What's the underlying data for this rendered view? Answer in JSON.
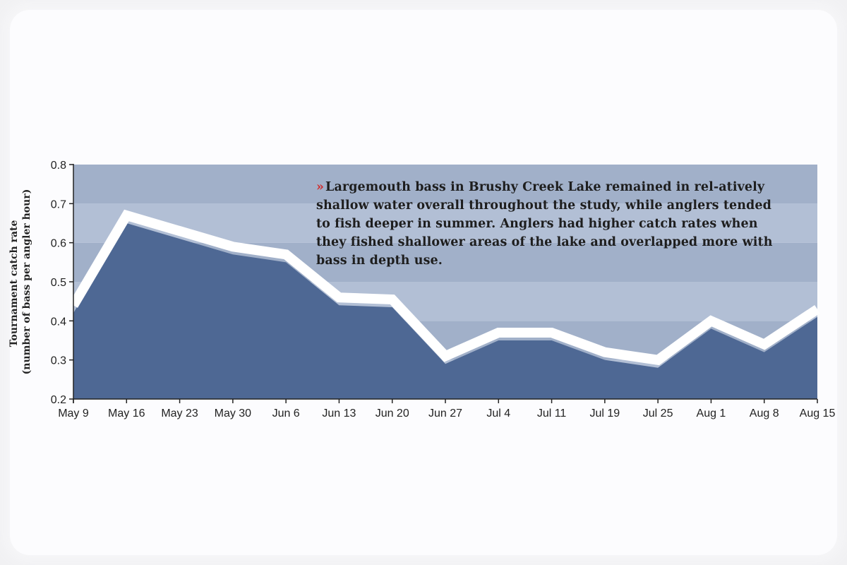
{
  "chart_data": {
    "type": "area",
    "categories": [
      "May 9",
      "May 16",
      "May 23",
      "May 30",
      "Jun 6",
      "Jun 13",
      "Jun 20",
      "Jun 27",
      "Jul 4",
      "Jul 11",
      "Jul 19",
      "Jul 25",
      "Aug 1",
      "Aug 8",
      "Aug 15"
    ],
    "series": [
      {
        "values": [
          0.42,
          0.65,
          0.61,
          0.57,
          0.55,
          0.44,
          0.435,
          0.29,
          0.35,
          0.35,
          0.3,
          0.28,
          0.38,
          0.32,
          0.41
        ]
      }
    ],
    "ylabel": [
      "Tournament catch rate",
      "(number of bass per angler hour)"
    ],
    "xlabel": "",
    "ylim": [
      0.2,
      0.8
    ],
    "yticks": [
      "0.2",
      "0.3",
      "0.4",
      "0.5",
      "0.6",
      "0.7",
      "0.8"
    ],
    "grid": true,
    "colors": {
      "area": "#4e6894",
      "band_dark": "#a1b0c9",
      "band_light": "#b2bfd5",
      "line": "#ffffff",
      "axis": "#222222"
    }
  },
  "annotation": {
    "marker": "»",
    "text": "Largemouth bass in Brushy Creek Lake remained in rel-atively shallow water overall throughout the study, while anglers tended to fish deeper in summer. Anglers had higher catch rates when they fished shallower areas of the lake and overlapped more with bass in depth use."
  }
}
